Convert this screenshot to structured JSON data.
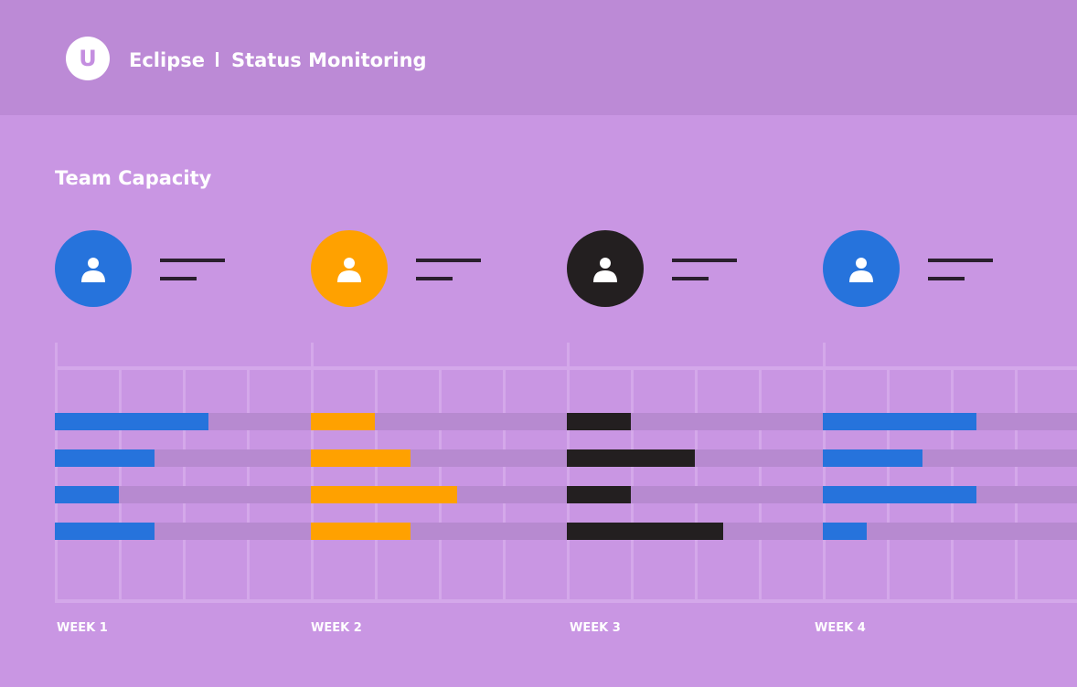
{
  "header": {
    "logo_letter": "U",
    "app_name": "Eclipse",
    "page_title": "Status Monitoring"
  },
  "section": {
    "title": "Team Capacity"
  },
  "icons": {
    "avatar": "user-icon",
    "logo": "u-logo-icon"
  },
  "team": [
    {
      "color": "#2673dc",
      "capacity": [
        0.6,
        0.39,
        0.25,
        0.39
      ]
    },
    {
      "color": "#ffa100",
      "capacity": [
        0.25,
        0.39,
        0.57,
        0.39
      ]
    },
    {
      "color": "#231f20",
      "capacity": [
        0.25,
        0.5,
        0.25,
        0.61
      ]
    },
    {
      "color": "#2673dc",
      "capacity": [
        0.6,
        0.39,
        0.6,
        0.17
      ]
    }
  ],
  "weeks": [
    "WEEK 1",
    "WEEK 2",
    "WEEK 3",
    "WEEK 4"
  ]
}
